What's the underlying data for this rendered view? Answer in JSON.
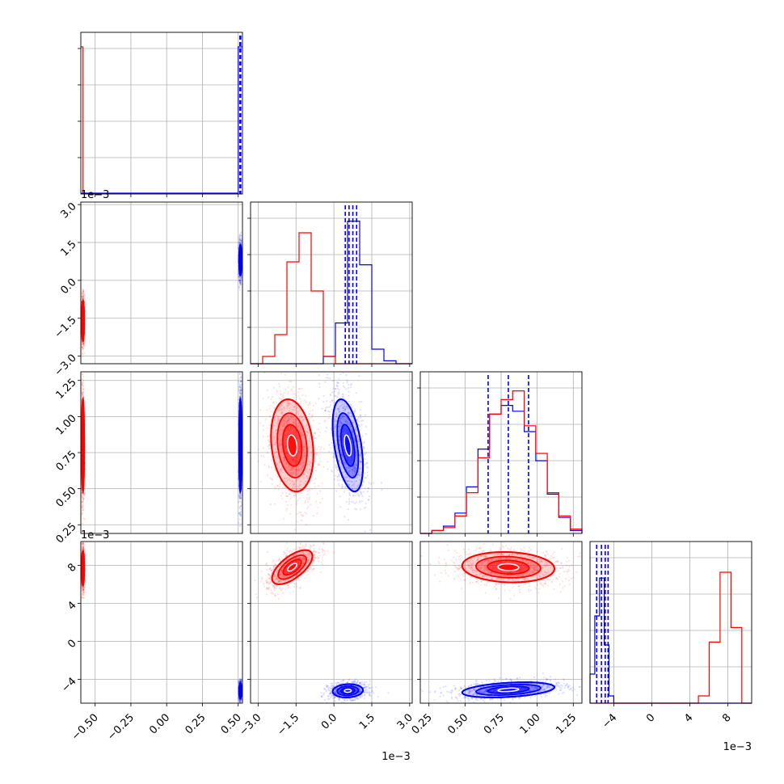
{
  "chart_data": {
    "type": "corner",
    "title": "",
    "parameters": [
      "",
      "",
      "",
      ""
    ],
    "grid": true,
    "series": [
      {
        "color": "#ff0000",
        "name": ""
      },
      {
        "color": "#0000ff",
        "name": ""
      }
    ],
    "axis_ranges": [
      [
        -0.6,
        0.53
      ],
      [
        -0.0033,
        0.0031
      ],
      [
        0.19,
        1.31
      ],
      [
        -0.0065,
        0.0105
      ]
    ],
    "x_tick_labels": [
      [
        "−0.50",
        "−0.25",
        "0.00",
        "0.25",
        "0.50"
      ],
      [
        "−3.0",
        "−1.5",
        "0.0",
        "1.5",
        "3.0"
      ],
      [
        "0.25",
        "0.50",
        "0.75",
        "1.00",
        "1.25"
      ],
      [
        "−4",
        "0",
        "4",
        "8"
      ]
    ],
    "x_tick_values": [
      [
        -0.5,
        -0.25,
        0.0,
        0.25,
        0.5
      ],
      [
        -0.003,
        -0.0015,
        0.0,
        0.0015,
        0.003
      ],
      [
        0.25,
        0.5,
        0.75,
        1.0,
        1.25
      ],
      [
        -0.004,
        0.0,
        0.004,
        0.008
      ]
    ],
    "y_tick_labels": [
      [],
      [
        "3.0",
        "1.5",
        "0.0",
        "−1.5",
        "−3.0"
      ],
      [
        "1.25",
        "1.00",
        "0.75",
        "0.50",
        "0.25"
      ],
      [
        "8",
        "4",
        "0",
        "−4"
      ]
    ],
    "offset_labels": {
      "row1_y": "1e−3",
      "row3_y": "1e−3",
      "col1_x": "1e−3",
      "col3_x": "1e−3"
    },
    "diagonal": [
      {
        "red": {
          "x": [
            -0.6,
            -0.585
          ],
          "counts": [
            1.0
          ]
        },
        "blue": {
          "x": [
            0.5,
            0.53
          ],
          "counts": [
            1.0
          ]
        },
        "quantiles_blue": [
          0.512,
          0.515,
          0.518
        ]
      },
      {
        "red": {
          "bins": [
            -0.0033,
            -0.00282,
            -0.00234,
            -0.00186,
            -0.00138,
            -0.0009,
            -0.00042,
            6e-05,
            0.00054,
            0.00102,
            0.0015,
            0.00198,
            0.00246,
            0.0031
          ],
          "counts": [
            0.0,
            0.05,
            0.2,
            0.7,
            0.9,
            0.5,
            0.05,
            0.0,
            0.0,
            0.0,
            0.0,
            0.0,
            0.0
          ]
        },
        "blue": {
          "bins": [
            -0.0033,
            -0.00282,
            -0.00234,
            -0.00186,
            -0.00138,
            -0.0009,
            -0.00042,
            6e-05,
            0.00054,
            0.00102,
            0.0015,
            0.00198,
            0.00246,
            0.0031
          ],
          "counts": [
            0.0,
            0.0,
            0.0,
            0.0,
            0.0,
            0.0,
            0.05,
            0.28,
            0.98,
            0.68,
            0.1,
            0.02,
            0.0
          ]
        },
        "quantiles_blue": [
          0.00045,
          0.0006,
          0.00075,
          0.0009
        ]
      },
      {
        "red": {
          "bins": [
            0.19,
            0.27,
            0.35,
            0.43,
            0.51,
            0.59,
            0.67,
            0.75,
            0.83,
            0.91,
            0.99,
            1.07,
            1.15,
            1.23,
            1.31
          ],
          "counts": [
            0.0,
            0.02,
            0.04,
            0.12,
            0.28,
            0.52,
            0.82,
            0.92,
            0.98,
            0.74,
            0.55,
            0.28,
            0.12,
            0.03
          ]
        },
        "blue": {
          "bins": [
            0.19,
            0.27,
            0.35,
            0.43,
            0.51,
            0.59,
            0.67,
            0.75,
            0.83,
            0.91,
            0.99,
            1.07,
            1.15,
            1.23,
            1.31
          ],
          "counts": [
            0.0,
            0.02,
            0.05,
            0.14,
            0.32,
            0.58,
            0.82,
            0.88,
            0.84,
            0.7,
            0.5,
            0.27,
            0.11,
            0.02
          ]
        },
        "quantiles_blue": [
          0.66,
          0.8,
          0.94
        ]
      },
      {
        "red": {
          "bins": [
            -0.0065,
            -0.00536,
            -0.00422,
            -0.00308,
            -0.00194,
            -0.0008,
            0.00034,
            0.00148,
            0.00262,
            0.00376,
            0.0049,
            0.00604,
            0.00718,
            0.00832,
            0.00946,
            0.0105
          ],
          "counts": [
            0.0,
            0.0,
            0.0,
            0.0,
            0.0,
            0.0,
            0.0,
            0.0,
            0.0,
            0.0,
            0.05,
            0.42,
            0.9,
            0.52,
            0.0
          ]
        },
        "blue": {
          "bins": [
            -0.0065,
            -0.006,
            -0.0055,
            -0.005,
            -0.0045,
            -0.004,
            -0.0035,
            0.0105
          ],
          "counts": [
            0.2,
            0.6,
            0.86,
            0.4,
            0.05,
            0.0,
            0.0
          ]
        },
        "quantiles_blue": [
          -0.0058,
          -0.0053,
          -0.0049,
          -0.0046
        ]
      }
    ],
    "pairs": [
      {
        "row": 1,
        "col": 0,
        "red": {
          "mean": [
            -0.585,
            -0.0016
          ],
          "sd": [
            0.004,
            0.0004
          ],
          "rho": 0
        },
        "blue": {
          "mean": [
            0.515,
            0.0008
          ],
          "sd": [
            0.004,
            0.0003
          ],
          "rho": 0
        }
      },
      {
        "row": 2,
        "col": 0,
        "red": {
          "mean": [
            -0.585,
            0.8
          ],
          "sd": [
            0.004,
            0.16
          ],
          "rho": 0
        },
        "blue": {
          "mean": [
            0.515,
            0.8
          ],
          "sd": [
            0.004,
            0.16
          ],
          "rho": 0
        }
      },
      {
        "row": 2,
        "col": 1,
        "red": {
          "mean": [
            -0.00165,
            0.8
          ],
          "sd": [
            0.00042,
            0.16
          ],
          "rho": -0.2
        },
        "blue": {
          "mean": [
            0.00055,
            0.8
          ],
          "sd": [
            0.0003,
            0.16
          ],
          "rho": -0.45
        }
      },
      {
        "row": 3,
        "col": 0,
        "red": {
          "mean": [
            -0.585,
            0.0077
          ],
          "sd": [
            0.004,
            0.0009
          ],
          "rho": 0
        },
        "blue": {
          "mean": [
            0.515,
            -0.0052
          ],
          "sd": [
            0.004,
            0.0004
          ],
          "rho": 0
        }
      },
      {
        "row": 3,
        "col": 1,
        "red": {
          "mean": [
            -0.00165,
            0.0078
          ],
          "sd": [
            0.0004,
            0.0009
          ],
          "rho": 0.65
        },
        "blue": {
          "mean": [
            0.00055,
            -0.0052
          ],
          "sd": [
            0.0003,
            0.00035
          ],
          "rho": 0.1
        }
      },
      {
        "row": 3,
        "col": 2,
        "red": {
          "mean": [
            0.8,
            0.0078
          ],
          "sd": [
            0.16,
            0.0008
          ],
          "rho": -0.1
        },
        "blue": {
          "mean": [
            0.8,
            -0.0051
          ],
          "sd": [
            0.16,
            0.0004
          ],
          "rho": 0.35
        }
      }
    ]
  }
}
